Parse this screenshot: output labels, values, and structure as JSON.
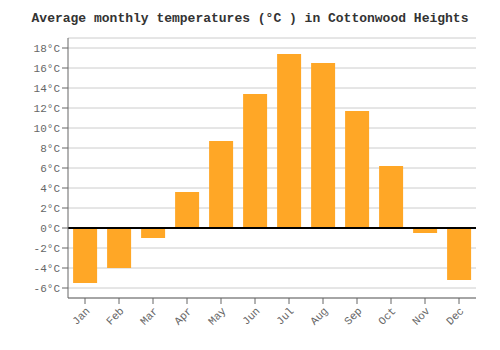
{
  "chart_data": {
    "type": "bar",
    "title": "Average monthly temperatures (°C ) in Cottonwood Heights",
    "categories": [
      "Jan",
      "Feb",
      "Mar",
      "Apr",
      "May",
      "Jun",
      "Jul",
      "Aug",
      "Sep",
      "Oct",
      "Nov",
      "Dec"
    ],
    "values": [
      -5.5,
      -4.0,
      -1.0,
      3.6,
      8.7,
      13.4,
      17.4,
      16.5,
      11.7,
      6.2,
      -0.5,
      -5.2
    ],
    "color": "#FFA726",
    "ylim": [
      -7,
      19
    ],
    "yticks": [
      {
        "value": -6,
        "label": "-6°C"
      },
      {
        "value": -4,
        "label": "-4°C"
      },
      {
        "value": -2,
        "label": "-2°C"
      },
      {
        "value": 0,
        "label": "0°C"
      },
      {
        "value": 2,
        "label": "2°C"
      },
      {
        "value": 4,
        "label": "4°C"
      },
      {
        "value": 6,
        "label": "6°C"
      },
      {
        "value": 8,
        "label": "8°C"
      },
      {
        "value": 10,
        "label": "10°C"
      },
      {
        "value": 12,
        "label": "12°C"
      },
      {
        "value": 14,
        "label": "14°C"
      },
      {
        "value": 16,
        "label": "16°C"
      },
      {
        "value": 18,
        "label": "18°C"
      }
    ],
    "grid": true
  }
}
